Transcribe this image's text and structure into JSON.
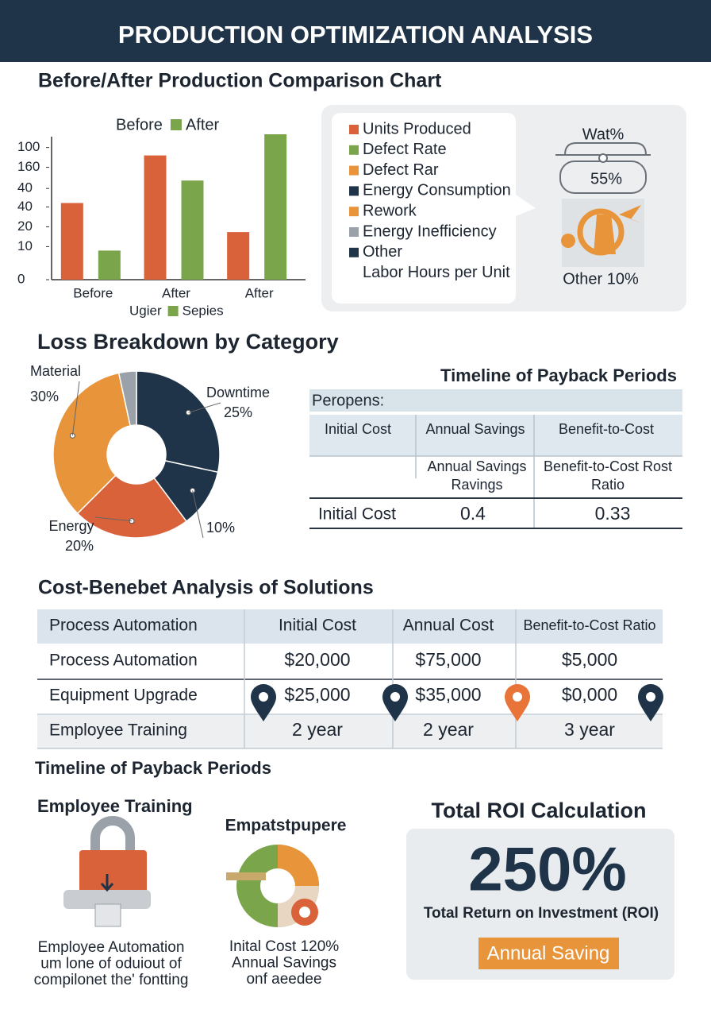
{
  "header": {
    "title": "PRODUCTION OPTIMIZATION ANALYSIS"
  },
  "chart_data": [
    {
      "type": "bar",
      "title": "Before/After Production Comparison Chart",
      "categories": [
        "Before",
        "After",
        "After"
      ],
      "series": [
        {
          "name": "Before",
          "color": "#d9623b",
          "values": [
            58,
            94,
            36
          ]
        },
        {
          "name": "After",
          "color": "#7aa54b",
          "values": [
            22,
            75,
            110
          ]
        }
      ],
      "ylim": [
        0,
        110
      ],
      "yticks": [
        100,
        {
          "value": 85,
          "label": "160"
        },
        {
          "value": 69,
          "label": "40"
        },
        {
          "value": 55,
          "label": "40"
        },
        {
          "value": 40,
          "label": "20"
        },
        {
          "value": 25,
          "label": "10"
        },
        0
      ],
      "bottom_legend": [
        {
          "name": "Ugier",
          "color": "#d9623b"
        },
        {
          "name": "Sepies",
          "color": "#7aa54b"
        }
      ]
    },
    {
      "type": "donut",
      "title": "Loss Breakdown by Category",
      "categories": [
        "Downtime",
        null,
        "Energy",
        "Material",
        null
      ],
      "values": [
        25,
        10,
        20,
        30,
        3
      ],
      "value_labels": [
        "25%",
        "10%",
        "20%",
        "30%",
        null
      ],
      "colors": [
        "#1f3448",
        "#1f3448",
        "#d9623b",
        "#e8943a",
        "#9aa1a8"
      ]
    }
  ],
  "legend_panel": {
    "items": [
      {
        "name": "Units Produced",
        "color": "#d9623b"
      },
      {
        "name": "Defect Rate",
        "color": "#7aa54b"
      },
      {
        "name": "Defect Rar",
        "color": "#e8943a"
      },
      {
        "name": "Energy Consumption",
        "color": "#1f3448"
      },
      {
        "name": "Rework",
        "color": "#e8943a"
      },
      {
        "name": "Energy Inefficiency",
        "color": "#9aa1a8"
      },
      {
        "name": "Other",
        "color": "#1f3448"
      },
      {
        "name": "Labor Hours per Unit"
      }
    ],
    "illustration": {
      "title": "Wat%",
      "value_label": "55%",
      "caption": "Other 10%"
    }
  },
  "payback_table": {
    "title": "Timeline of Payback Periods",
    "caption": "Peropens:",
    "header": [
      "Initial Cost",
      "Annual Savings",
      "Benefit-to-Cost"
    ],
    "subrow": [
      null,
      [
        "Annual Savings",
        "Ravings"
      ],
      [
        "Benefit-to-Cost Rost",
        "Ratio"
      ]
    ],
    "rows": [
      [
        "Initial Cost",
        "0.4",
        "0.33"
      ]
    ]
  },
  "cost_table": {
    "title": "Cost-Benebet Analysis of Solutions",
    "header": [
      "Process Automation",
      "Initial Cost",
      "Annual Cost",
      "Benefit-to-Cost Ratio"
    ],
    "rows": [
      [
        "Process Automation",
        "$20,000",
        "$75,000",
        "$5,000"
      ],
      [
        "Equipment Upgrade",
        "$25,000",
        "$35,000",
        "$0,000"
      ],
      [
        "Employee Training",
        "2 year",
        "2 year",
        "3 year"
      ]
    ]
  },
  "timeline": {
    "title": "Timeline of Payback Periods",
    "items": [
      {
        "title": "Employee Training",
        "caption": [
          "Employee Automation",
          "um lone of oduiout of",
          "compilonet the' fontting"
        ]
      },
      {
        "title": "Empatstpupere",
        "caption": [
          "Inital Cost 120%",
          "Annual Savings",
          "onf aeedee"
        ]
      }
    ]
  },
  "roi": {
    "title": "Total ROI Calculation",
    "value": "250%",
    "label": "Total Return on Investment (ROI)",
    "button": "Annual Saving"
  }
}
